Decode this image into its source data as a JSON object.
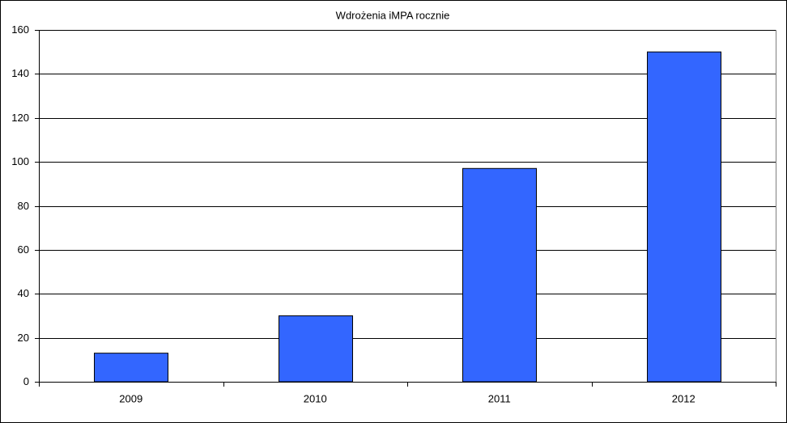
{
  "chart_data": {
    "type": "bar",
    "title": "Wdrożenia iMPA rocznie",
    "categories": [
      "2009",
      "2010",
      "2011",
      "2012"
    ],
    "values": [
      13,
      30,
      97,
      150
    ],
    "color": "#3366ff",
    "ylim": [
      0,
      160
    ],
    "yticks": [
      0,
      20,
      40,
      60,
      80,
      100,
      120,
      140,
      160
    ],
    "grid": true
  }
}
